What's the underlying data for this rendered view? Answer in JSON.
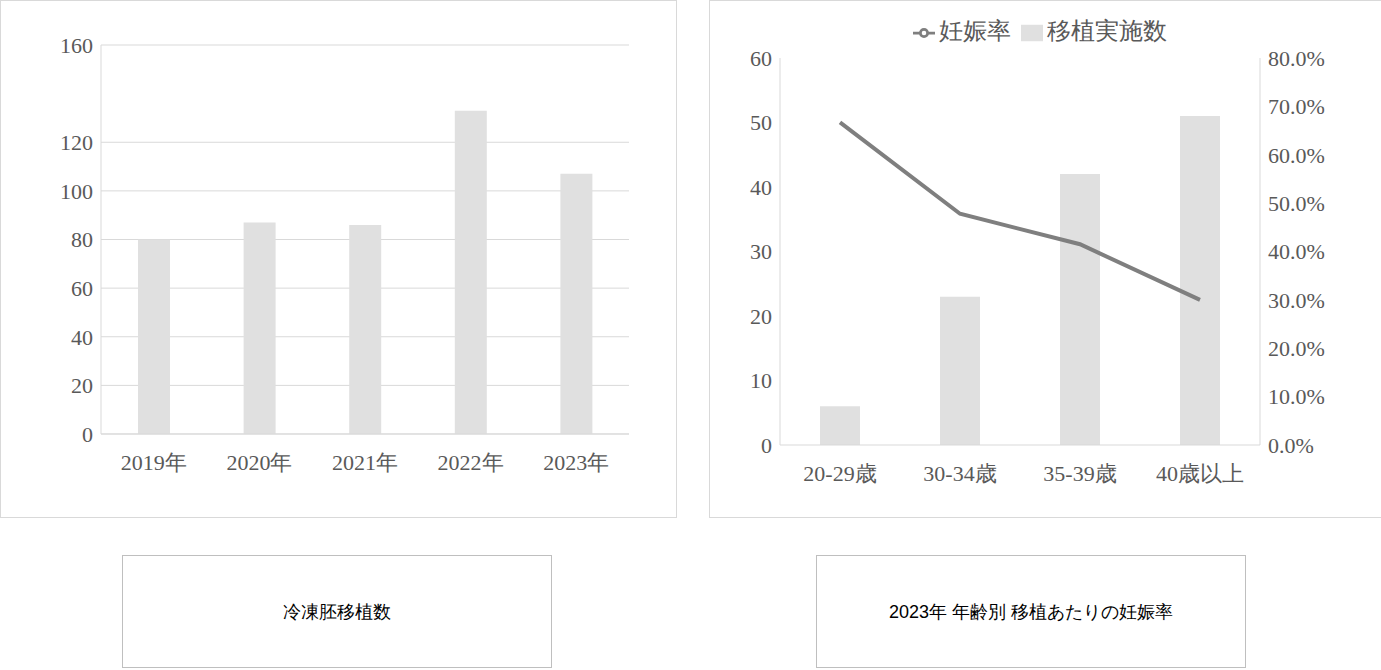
{
  "chart_data": [
    {
      "type": "bar",
      "title": "冷凍胚移植数",
      "categories": [
        "2019年",
        "2020年",
        "2021年",
        "2022年",
        "2023年"
      ],
      "values": [
        80,
        87,
        86,
        133,
        107
      ],
      "color": "#e0e0e0",
      "ylim": [
        0,
        160
      ],
      "yticks": [
        0,
        20,
        40,
        60,
        80,
        100,
        120,
        160
      ],
      "grid": true
    },
    {
      "type": "bar",
      "title": "2023年 年齢別 移植あたりの妊娠率",
      "categories": [
        "20-29歳",
        "30-34歳",
        "35-39歳",
        "40歳以上"
      ],
      "series": [
        {
          "name": "移植実施数",
          "type": "bar",
          "color": "#e0e0e0",
          "values": [
            6,
            23,
            42,
            51
          ]
        },
        {
          "name": "妊娠率",
          "type": "line",
          "color": "#7f7f7f",
          "axis": "y2",
          "values": [
            66.7,
            47.8,
            41.5,
            30.0
          ]
        }
      ],
      "ylim": [
        0,
        60
      ],
      "yticks": [
        0,
        10,
        20,
        30,
        40,
        50,
        60
      ],
      "y2lim": [
        0,
        80
      ],
      "y2ticks": [
        {
          "value": 0,
          "label": "0.0%"
        },
        {
          "value": 10,
          "label": "10.0%"
        },
        {
          "value": 20,
          "label": "20.0%"
        },
        {
          "value": 30,
          "label": "30.0%"
        },
        {
          "value": 40,
          "label": "40.0%"
        },
        {
          "value": 50,
          "label": "50.0%"
        },
        {
          "value": 60,
          "label": "60.0%"
        },
        {
          "value": 70,
          "label": "70.0%"
        },
        {
          "value": 80,
          "label": "80.0%"
        }
      ],
      "legend": "top",
      "grid": false
    }
  ]
}
